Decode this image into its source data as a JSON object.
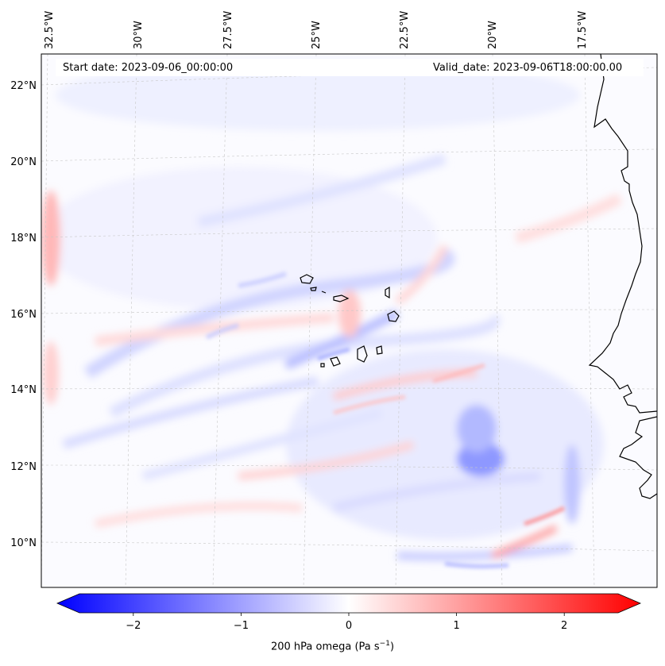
{
  "map": {
    "start_date": "Start date: 2023-09-06_00:00:00",
    "valid_date": "Valid_date: 2023-09-06T18:00:00.00",
    "lon_labels": [
      "32.5°W",
      "30°W",
      "27.5°W",
      "25°W",
      "22.5°W",
      "20°W",
      "17.5°W"
    ],
    "lat_labels": [
      "22°N",
      "20°N",
      "18°N",
      "16°N",
      "14°N",
      "12°N",
      "10°N"
    ],
    "variable": "200 hPa omega",
    "colormap": {
      "negative": "#0000ff",
      "zero": "#ffffff",
      "positive": "#ff0000"
    },
    "lon_range": [
      -33,
      -16
    ],
    "lat_range": [
      9,
      22.8
    ],
    "grid_color": "#c8c8c8",
    "coast_color": "#000000"
  },
  "colorbar": {
    "label_text": "200 hPa omega (Pa s",
    "label_exp": "−1",
    "label_close": ")",
    "ticks": [
      "−2",
      "−1",
      "0",
      "1",
      "2"
    ],
    "min": -2.5,
    "max": 2.5,
    "tick_values": [
      -2,
      -1,
      0,
      1,
      2
    ]
  }
}
